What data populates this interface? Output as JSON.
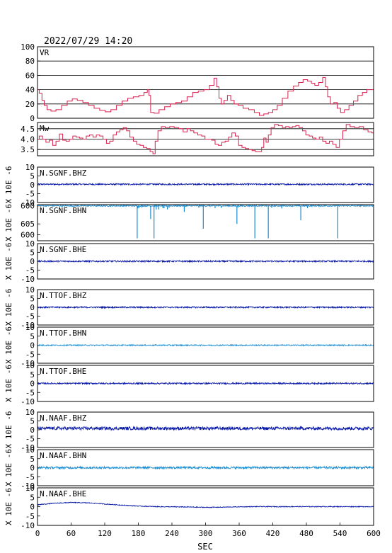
{
  "header": {
    "timestamp": "2022/07/29 14:20"
  },
  "colors": {
    "vr": "#d6204e",
    "mw": "#d6204e",
    "dark_trace": "#0a1aa6",
    "light_trace": "#1a8cd0",
    "axis": "#000000"
  },
  "chart_data": {
    "type": "line",
    "x_axis": {
      "label": "SEC",
      "range": [
        0,
        600
      ],
      "ticks": [
        "0",
        "60",
        "120",
        "180",
        "240",
        "300",
        "360",
        "420",
        "480",
        "540",
        "600"
      ]
    },
    "panels": [
      {
        "id": "vr",
        "label": "VR",
        "ylim": [
          0,
          100
        ],
        "ticks": [
          "100",
          "80",
          "60",
          "40",
          "20",
          "0"
        ],
        "tick_values": [
          100,
          80,
          60,
          40,
          20,
          0
        ],
        "grid": true,
        "color": "vr",
        "points": [
          [
            0,
            40
          ],
          [
            6,
            35
          ],
          [
            10,
            25
          ],
          [
            14,
            18
          ],
          [
            20,
            12
          ],
          [
            28,
            10
          ],
          [
            38,
            12
          ],
          [
            48,
            18
          ],
          [
            58,
            24
          ],
          [
            66,
            27
          ],
          [
            76,
            25
          ],
          [
            86,
            22
          ],
          [
            96,
            18
          ],
          [
            106,
            14
          ],
          [
            116,
            11
          ],
          [
            126,
            9
          ],
          [
            136,
            12
          ],
          [
            146,
            18
          ],
          [
            156,
            24
          ],
          [
            166,
            28
          ],
          [
            176,
            30
          ],
          [
            186,
            32
          ],
          [
            194,
            36
          ],
          [
            198,
            40
          ],
          [
            200,
            32
          ],
          [
            204,
            8
          ],
          [
            212,
            7
          ],
          [
            222,
            12
          ],
          [
            232,
            16
          ],
          [
            242,
            20
          ],
          [
            252,
            22
          ],
          [
            262,
            24
          ],
          [
            272,
            30
          ],
          [
            282,
            36
          ],
          [
            292,
            38
          ],
          [
            302,
            40
          ],
          [
            312,
            46
          ],
          [
            318,
            56
          ],
          [
            322,
            44
          ],
          [
            326,
            28
          ],
          [
            330,
            20
          ],
          [
            336,
            25
          ],
          [
            342,
            32
          ],
          [
            348,
            25
          ],
          [
            354,
            20
          ],
          [
            362,
            18
          ],
          [
            372,
            14
          ],
          [
            382,
            12
          ],
          [
            392,
            8
          ],
          [
            400,
            4
          ],
          [
            408,
            6
          ],
          [
            416,
            8
          ],
          [
            424,
            12
          ],
          [
            432,
            18
          ],
          [
            442,
            28
          ],
          [
            452,
            38
          ],
          [
            462,
            45
          ],
          [
            470,
            50
          ],
          [
            478,
            54
          ],
          [
            486,
            52
          ],
          [
            492,
            49
          ],
          [
            498,
            46
          ],
          [
            506,
            50
          ],
          [
            512,
            57
          ],
          [
            516,
            44
          ],
          [
            520,
            30
          ],
          [
            526,
            20
          ],
          [
            532,
            22
          ],
          [
            538,
            14
          ],
          [
            544,
            8
          ],
          [
            552,
            12
          ],
          [
            560,
            18
          ],
          [
            568,
            24
          ],
          [
            576,
            32
          ],
          [
            584,
            36
          ],
          [
            592,
            40
          ],
          [
            600,
            40
          ]
        ]
      },
      {
        "id": "mw",
        "label": "Mw",
        "ylim": [
          3.2,
          4.8
        ],
        "ticks": [
          "4.5",
          "4.0",
          "3.5"
        ],
        "tick_values": [
          4.5,
          4.0,
          3.5
        ],
        "grid": true,
        "color": "mw",
        "points": [
          [
            0,
            4.0
          ],
          [
            6,
            4.15
          ],
          [
            12,
            4.0
          ],
          [
            18,
            3.85
          ],
          [
            24,
            3.95
          ],
          [
            30,
            3.7
          ],
          [
            36,
            3.9
          ],
          [
            42,
            4.25
          ],
          [
            48,
            3.95
          ],
          [
            54,
            3.9
          ],
          [
            60,
            4.0
          ],
          [
            66,
            4.15
          ],
          [
            72,
            4.1
          ],
          [
            78,
            4.05
          ],
          [
            84,
            4.0
          ],
          [
            90,
            4.15
          ],
          [
            96,
            4.2
          ],
          [
            102,
            4.1
          ],
          [
            108,
            4.2
          ],
          [
            114,
            4.15
          ],
          [
            120,
            4.0
          ],
          [
            126,
            3.8
          ],
          [
            132,
            3.9
          ],
          [
            138,
            4.2
          ],
          [
            144,
            4.35
          ],
          [
            150,
            4.45
          ],
          [
            156,
            4.55
          ],
          [
            162,
            4.4
          ],
          [
            168,
            4.1
          ],
          [
            174,
            3.9
          ],
          [
            180,
            3.75
          ],
          [
            186,
            3.7
          ],
          [
            192,
            3.6
          ],
          [
            198,
            3.55
          ],
          [
            204,
            3.4
          ],
          [
            208,
            3.3
          ],
          [
            212,
            3.9
          ],
          [
            218,
            4.4
          ],
          [
            224,
            4.6
          ],
          [
            232,
            4.55
          ],
          [
            240,
            4.6
          ],
          [
            248,
            4.55
          ],
          [
            256,
            4.5
          ],
          [
            264,
            4.35
          ],
          [
            270,
            4.5
          ],
          [
            276,
            4.4
          ],
          [
            282,
            4.3
          ],
          [
            290,
            4.2
          ],
          [
            296,
            4.15
          ],
          [
            302,
            4.0
          ],
          [
            308,
            4.0
          ],
          [
            314,
            3.95
          ],
          [
            320,
            3.75
          ],
          [
            326,
            3.7
          ],
          [
            332,
            3.85
          ],
          [
            338,
            3.9
          ],
          [
            344,
            4.1
          ],
          [
            350,
            4.3
          ],
          [
            356,
            4.15
          ],
          [
            362,
            3.7
          ],
          [
            368,
            3.6
          ],
          [
            374,
            3.55
          ],
          [
            380,
            3.5
          ],
          [
            386,
            3.45
          ],
          [
            392,
            3.4
          ],
          [
            398,
            3.4
          ],
          [
            402,
            3.6
          ],
          [
            406,
            4.05
          ],
          [
            410,
            3.85
          ],
          [
            414,
            4.2
          ],
          [
            420,
            4.55
          ],
          [
            426,
            4.7
          ],
          [
            434,
            4.65
          ],
          [
            440,
            4.55
          ],
          [
            446,
            4.6
          ],
          [
            452,
            4.55
          ],
          [
            458,
            4.6
          ],
          [
            464,
            4.65
          ],
          [
            470,
            4.55
          ],
          [
            476,
            4.4
          ],
          [
            482,
            4.2
          ],
          [
            488,
            4.15
          ],
          [
            494,
            4.05
          ],
          [
            500,
            4.0
          ],
          [
            506,
            4.1
          ],
          [
            512,
            3.9
          ],
          [
            518,
            3.8
          ],
          [
            524,
            3.9
          ],
          [
            530,
            3.75
          ],
          [
            536,
            3.6
          ],
          [
            542,
            4.0
          ],
          [
            548,
            4.4
          ],
          [
            554,
            4.7
          ],
          [
            562,
            4.6
          ],
          [
            570,
            4.55
          ],
          [
            578,
            4.6
          ],
          [
            586,
            4.45
          ],
          [
            594,
            4.35
          ],
          [
            600,
            4.3
          ]
        ]
      },
      {
        "id": "n-sgnf-bhz",
        "label": "N.SGNF.BHZ",
        "ylim": [
          -10,
          10
        ],
        "ticks": [
          "10",
          "5",
          "0",
          "-5",
          "-10"
        ],
        "tick_values": [
          10,
          5,
          0,
          -5,
          -10
        ],
        "ylabel": "X 10E -6",
        "color": "dark_trace",
        "kind": "noise",
        "baseline": 0.3,
        "amplitude": 0.4,
        "spikes": []
      },
      {
        "id": "n-sgnf-bhn",
        "label": "N.SGNF.BHN",
        "ylim": [
          -612,
          -597
        ],
        "ticks": [
          "600",
          "605",
          "600"
        ],
        "tick_values": [
          -597.5,
          -605,
          -609.5
        ],
        "ylabel": "X 10E -6",
        "color": "light_trace",
        "kind": "spiky",
        "baseline": -597.5,
        "amplitude": 0.25,
        "spikes": [
          [
            178,
            -611
          ],
          [
            179,
            -598.5
          ],
          [
            181,
            -598.5
          ],
          [
            186,
            -598.2
          ],
          [
            202,
            -603
          ],
          [
            208,
            -611
          ],
          [
            212,
            -599
          ],
          [
            216,
            -599
          ],
          [
            224,
            -598.5
          ],
          [
            226,
            -598.5
          ],
          [
            232,
            -599
          ],
          [
            235,
            -598.3
          ],
          [
            262,
            -600
          ],
          [
            288,
            -598.3
          ],
          [
            296,
            -607
          ],
          [
            317,
            -598.5
          ],
          [
            328,
            -598.4
          ],
          [
            356,
            -605
          ],
          [
            358,
            -598.2
          ],
          [
            388,
            -611
          ],
          [
            412,
            -611
          ],
          [
            418,
            -598.3
          ],
          [
            436,
            -598.6
          ],
          [
            470,
            -603.5
          ],
          [
            482,
            -598.5
          ],
          [
            536,
            -611
          ]
        ]
      },
      {
        "id": "n-sgnf-bhe",
        "label": "N.SGNF.BHE",
        "ylim": [
          -10,
          10
        ],
        "ticks": [
          "10",
          "5",
          "0",
          "-5",
          "-10"
        ],
        "tick_values": [
          10,
          5,
          0,
          -5,
          -10
        ],
        "ylabel": "X 10E -6",
        "color": "dark_trace",
        "kind": "noise",
        "baseline": 0.0,
        "amplitude": 0.4,
        "spikes": []
      },
      {
        "id": "n-ttof-bhz",
        "label": "N.TTOF.BHZ",
        "ylim": [
          -10,
          10
        ],
        "ticks": [
          "10",
          "5",
          "0",
          "-5",
          "-10"
        ],
        "tick_values": [
          10,
          5,
          0,
          -5,
          -10
        ],
        "ylabel": "X 10E -6",
        "color": "dark_trace",
        "kind": "noise",
        "baseline": 0.0,
        "amplitude": 0.4,
        "spikes": []
      },
      {
        "id": "n-ttof-bhn",
        "label": "N.TTOF.BHN",
        "ylim": [
          -10,
          10
        ],
        "ticks": [
          "10",
          "5",
          "0",
          "-5",
          "-10"
        ],
        "tick_values": [
          10,
          5,
          0,
          -5,
          -10
        ],
        "ylabel": "X 10E -6",
        "color": "light_trace",
        "kind": "noise",
        "baseline": 0.0,
        "amplitude": 0.3,
        "spikes": []
      },
      {
        "id": "n-ttof-bhe",
        "label": "N.TTOF.BHE",
        "ylim": [
          -10,
          10
        ],
        "ticks": [
          "10",
          "5",
          "0",
          "-5",
          "-10"
        ],
        "tick_values": [
          10,
          5,
          0,
          -5,
          -10
        ],
        "ylabel": "X 10E -6",
        "color": "dark_trace",
        "kind": "noise",
        "baseline": 0.0,
        "amplitude": 0.4,
        "spikes": []
      },
      {
        "id": "n-naaf-bhz",
        "label": "N.NAAF.BHZ",
        "ylim": [
          -10,
          10
        ],
        "ticks": [
          "10",
          "5",
          "0",
          "-5",
          "-10"
        ],
        "tick_values": [
          10,
          5,
          0,
          -5,
          -10
        ],
        "ylabel": "X 10E -6",
        "color": "dark_trace",
        "kind": "noise",
        "baseline": 0.8,
        "amplitude": 0.9,
        "spikes": []
      },
      {
        "id": "n-naaf-bhn",
        "label": "N.NAAF.BHN",
        "ylim": [
          -10,
          10
        ],
        "ticks": [
          "10",
          "5",
          "0",
          "-5",
          "-10"
        ],
        "tick_values": [
          10,
          5,
          0,
          -5,
          -10
        ],
        "ylabel": "X 10E -6",
        "color": "light_trace",
        "kind": "noise",
        "baseline": 0.0,
        "amplitude": 0.6,
        "spikes": []
      },
      {
        "id": "n-naaf-bhe",
        "label": "N.NAAF.BHE",
        "ylim": [
          -10,
          10
        ],
        "ticks": [
          "10",
          "5",
          "0",
          "-5",
          "-10"
        ],
        "tick_values": [
          10,
          5,
          0,
          -5,
          -10
        ],
        "ylabel": "X 10E -6",
        "color": "dark_trace",
        "kind": "wave",
        "baseline": 0.0,
        "amplitude": 0.2,
        "spikes": [],
        "wave_points": [
          [
            0,
            1.0
          ],
          [
            30,
            1.8
          ],
          [
            60,
            2.2
          ],
          [
            90,
            2.0
          ],
          [
            120,
            1.4
          ],
          [
            150,
            0.8
          ],
          [
            180,
            0.3
          ],
          [
            210,
            0.0
          ],
          [
            240,
            -0.1
          ],
          [
            270,
            -0.2
          ],
          [
            300,
            -0.4
          ],
          [
            330,
            -0.3
          ],
          [
            360,
            -0.1
          ],
          [
            390,
            0.0
          ],
          [
            420,
            0.0
          ],
          [
            450,
            0.0
          ],
          [
            480,
            0.0
          ],
          [
            510,
            0.0
          ],
          [
            540,
            0.0
          ],
          [
            570,
            0.0
          ],
          [
            600,
            0.0
          ]
        ]
      }
    ]
  }
}
